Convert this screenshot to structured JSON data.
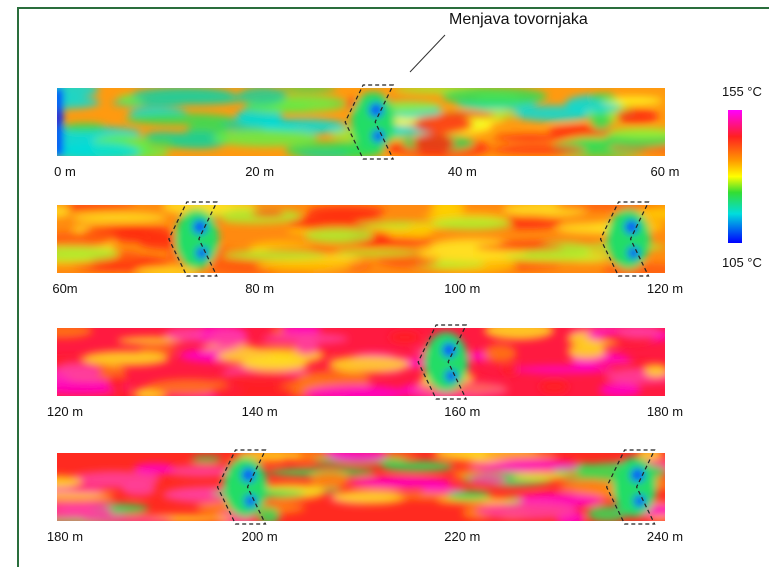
{
  "annotation": "Menjava tovornjaka",
  "colorbar": {
    "max": "155 °C",
    "min": "105 °C"
  },
  "strips": [
    {
      "labels": [
        "0 m",
        "20 m",
        "40 m",
        "60 m"
      ]
    },
    {
      "labels": [
        "60m",
        "80 m",
        "100 m",
        "120 m"
      ]
    },
    {
      "labels": [
        "120 m",
        "140 m",
        "160 m",
        "180 m"
      ]
    },
    {
      "labels": [
        "180 m",
        "200 m",
        "220 m",
        "240 m"
      ]
    }
  ]
}
